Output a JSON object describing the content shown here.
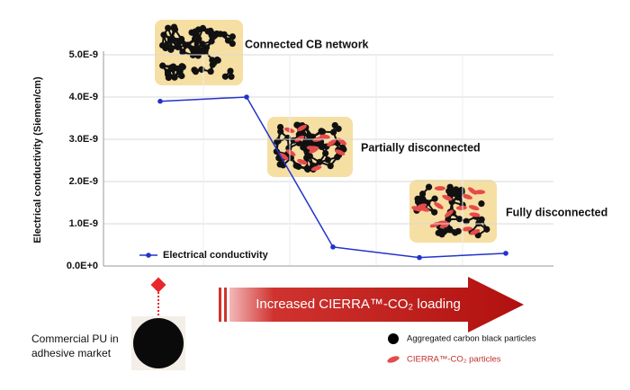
{
  "chart_data": {
    "type": "line",
    "y_label": "Electrical conductivity (Siemen/cm)",
    "categories": [
      null,
      null,
      null,
      null,
      null
    ],
    "series": [
      {
        "name": "Electrical conductivity",
        "color": "#2233cc",
        "values": [
          3.9e-09,
          4e-09,
          4.5e-10,
          2e-10,
          3e-10
        ]
      }
    ],
    "ylim": [
      0,
      5e-09
    ],
    "yticks": [
      {
        "value": 0,
        "label": "0.0E+0"
      },
      {
        "value": 1e-09,
        "label": "1.0E-9"
      },
      {
        "value": 2e-09,
        "label": "2.0E-9"
      },
      {
        "value": 3e-09,
        "label": "3.0E-9"
      },
      {
        "value": 4e-09,
        "label": "4.0E-9"
      },
      {
        "value": 5e-09,
        "label": "5.0E-9"
      }
    ],
    "grid": true,
    "legend_position": "lower left",
    "annotations": [
      "Connected CB network",
      "Partially disconnected",
      "Fully disconnected"
    ],
    "arrow_label": "Increased CIERRA™-CO₂ loading",
    "reference_label": [
      "Commercial PU in",
      "adhesive market"
    ],
    "particle_legend": [
      "Aggregated carbon black particles",
      "CIERRA™-CO₂ particles"
    ]
  }
}
